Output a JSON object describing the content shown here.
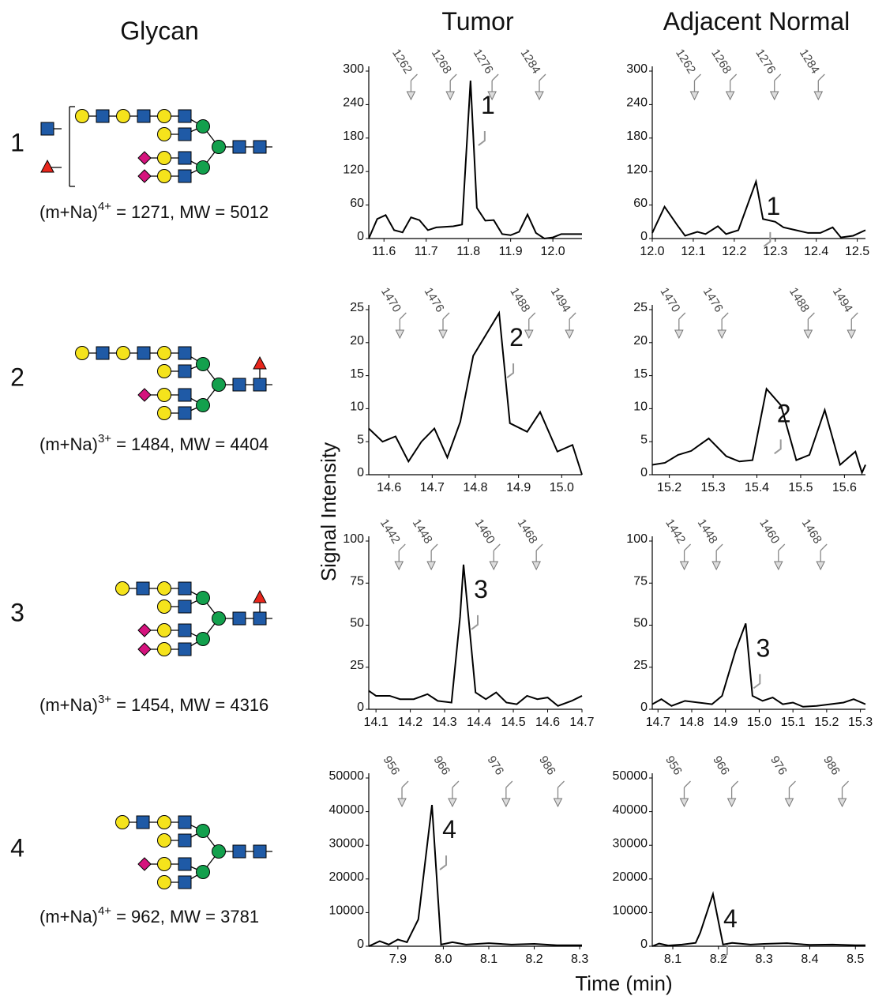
{
  "headers": {
    "glycan": "Glycan",
    "tumor": "Tumor",
    "normal": "Adjacent Normal"
  },
  "y_label": "Signal Intensity",
  "x_label": "Time (min)",
  "glycans": [
    {
      "number": "1",
      "formula": "(m+Na)",
      "charge": "4+",
      "details": "= 1271, MW = 5012"
    },
    {
      "number": "2",
      "formula": "(m+Na)",
      "charge": "3+",
      "details": "= 1484, MW = 4404"
    },
    {
      "number": "3",
      "formula": "(m+Na)",
      "charge": "3+",
      "details": "= 1454, MW = 4316"
    },
    {
      "number": "4",
      "formula": "(m+Na)",
      "charge": "4+",
      "details": "= 962, MW = 3781"
    }
  ],
  "chart_data": [
    {
      "type": "line",
      "color": "#000000",
      "annotation": "1",
      "x": [
        11.564,
        11.584,
        11.604,
        11.624,
        11.644,
        11.664,
        11.684,
        11.704,
        11.724,
        11.764,
        11.785,
        11.805,
        11.82,
        11.84,
        11.86,
        11.88,
        11.9,
        11.92,
        11.94,
        11.96,
        11.98,
        12.0,
        12.02,
        12.069
      ],
      "values": [
        0,
        35,
        42,
        15,
        11,
        38,
        33,
        15,
        20,
        22,
        25,
        283,
        55,
        32,
        33,
        8,
        6,
        12,
        43,
        10,
        0,
        2,
        8,
        8
      ],
      "xlim": [
        11.564,
        12.069
      ],
      "ylim": [
        0,
        300
      ],
      "xticks": [
        11.6,
        11.7,
        11.8,
        11.9,
        {
          "value": 12,
          "label": "12.0"
        }
      ],
      "yticks": [
        0,
        60,
        120,
        180,
        240,
        300
      ],
      "markers": {
        "x": [
          11.664,
          11.757,
          11.856,
          11.968
        ],
        "labels": [
          "1262",
          "1268",
          "1276",
          "1284"
        ]
      }
    },
    {
      "type": "line",
      "color": "#000000",
      "annotation": "1",
      "x": [
        12.0,
        12.03,
        12.06,
        12.08,
        12.11,
        12.13,
        12.16,
        12.18,
        12.21,
        12.253,
        12.27,
        12.3,
        12.32,
        12.35,
        12.38,
        12.41,
        12.44,
        12.46,
        12.49,
        12.52
      ],
      "values": [
        10,
        57,
        25,
        5,
        12,
        8,
        22,
        8,
        15,
        102,
        35,
        30,
        20,
        15,
        10,
        10,
        20,
        2,
        5,
        15
      ],
      "xlim": [
        12.0,
        12.52
      ],
      "ylim": [
        0,
        300
      ],
      "xticks": [
        {
          "value": 12,
          "label": "12.0"
        },
        12.1,
        12.2,
        12.3,
        12.4,
        12.5
      ],
      "yticks": [
        0,
        60,
        120,
        180,
        240,
        300
      ],
      "markers": {
        "x": [
          12.103,
          12.19,
          12.298,
          12.405
        ],
        "labels": [
          "1262",
          "1268",
          "1276",
          "1284"
        ]
      }
    },
    {
      "type": "line",
      "color": "#000000",
      "annotation": "2",
      "x": [
        14.553,
        14.585,
        14.615,
        14.645,
        14.675,
        14.705,
        14.735,
        14.765,
        14.795,
        14.855,
        14.88,
        14.92,
        14.95,
        14.99,
        15.025,
        15.047
      ],
      "values": [
        7,
        5,
        5.8,
        2,
        5,
        7,
        2.6,
        8,
        18,
        24.5,
        7.8,
        6.5,
        9.5,
        3.5,
        4.5,
        0
      ],
      "xlim": [
        14.553,
        15.047
      ],
      "ylim": [
        0,
        25
      ],
      "xticks": [
        14.6,
        14.7,
        14.8,
        14.9,
        {
          "value": 15,
          "label": "15.0"
        }
      ],
      "yticks": [
        0,
        5,
        10,
        15,
        20,
        25
      ],
      "markers": {
        "x": [
          14.625,
          14.725,
          14.924,
          15.018
        ],
        "labels": [
          "1470",
          "1476",
          "1488",
          "1494"
        ]
      }
    },
    {
      "type": "line",
      "color": "#000000",
      "annotation": "2",
      "x": [
        15.161,
        15.19,
        15.22,
        15.25,
        15.29,
        15.33,
        15.36,
        15.39,
        15.422,
        15.455,
        15.49,
        15.52,
        15.555,
        15.59,
        15.625,
        15.64,
        15.648
      ],
      "values": [
        1.5,
        1.8,
        3,
        3.6,
        5.5,
        2.8,
        2,
        2.2,
        13,
        10.5,
        2.2,
        3,
        9.8,
        1.5,
        3.5,
        0.3,
        1.5
      ],
      "xlim": [
        15.161,
        15.648
      ],
      "ylim": [
        0,
        25
      ],
      "xticks": [
        15.2,
        15.3,
        15.4,
        15.5,
        15.6
      ],
      "yticks": [
        0,
        5,
        10,
        15,
        20,
        25
      ],
      "markers": {
        "x": [
          15.222,
          15.32,
          15.517,
          15.616
        ],
        "labels": [
          "1470",
          "1476",
          "1488",
          "1494"
        ]
      }
    },
    {
      "type": "line",
      "color": "#000000",
      "annotation": "3",
      "x": [
        14.079,
        14.1,
        14.14,
        14.17,
        14.21,
        14.25,
        14.28,
        14.32,
        14.345,
        14.355,
        14.39,
        14.42,
        14.45,
        14.48,
        14.51,
        14.54,
        14.57,
        14.6,
        14.63,
        14.67,
        14.7
      ],
      "values": [
        11,
        8,
        8,
        6,
        6,
        9,
        5,
        4,
        55,
        86,
        10,
        6,
        10,
        4,
        3,
        8,
        6,
        7,
        2,
        5,
        8
      ],
      "xlim": [
        14.079,
        14.7
      ],
      "ylim": [
        0,
        100
      ],
      "xticks": [
        14.1,
        14.2,
        14.3,
        14.4,
        14.5,
        14.6,
        14.7
      ],
      "yticks": [
        0,
        25,
        50,
        75,
        100
      ],
      "markers": {
        "x": [
          14.167,
          14.261,
          14.443,
          14.567
        ],
        "labels": [
          "1442",
          "1448",
          "1460",
          "1468"
        ]
      }
    },
    {
      "type": "line",
      "color": "#000000",
      "annotation": "3",
      "x": [
        14.683,
        14.71,
        14.74,
        14.78,
        14.82,
        14.86,
        14.89,
        14.93,
        14.96,
        14.98,
        15.01,
        15.04,
        15.07,
        15.1,
        15.13,
        15.17,
        15.21,
        15.25,
        15.28,
        15.315
      ],
      "values": [
        3,
        6,
        2,
        5,
        4,
        3,
        8,
        35,
        51,
        8,
        5,
        7,
        3,
        4,
        1.5,
        2,
        3,
        4,
        6,
        3
      ],
      "xlim": [
        14.683,
        15.315
      ],
      "ylim": [
        0,
        100
      ],
      "xticks": [
        14.7,
        14.8,
        14.9,
        {
          "value": 15,
          "label": "15.0"
        },
        15.1,
        15.2,
        15.3
      ],
      "yticks": [
        0,
        25,
        50,
        75,
        100
      ],
      "markers": {
        "x": [
          14.778,
          14.873,
          15.057,
          15.182
        ],
        "labels": [
          "1442",
          "1448",
          "1460",
          "1468"
        ]
      }
    },
    {
      "type": "line",
      "color": "#000000",
      "annotation": "4",
      "x": [
        7.836,
        7.86,
        7.88,
        7.9,
        7.92,
        7.945,
        7.975,
        7.995,
        8.02,
        8.05,
        8.1,
        8.15,
        8.2,
        8.25,
        8.305
      ],
      "values": [
        0,
        1500,
        500,
        2000,
        1200,
        8000,
        42000,
        500,
        1200,
        500,
        900,
        500,
        700,
        300,
        300
      ],
      "xlim": [
        7.836,
        8.305
      ],
      "ylim": [
        0,
        50000
      ],
      "xticks": [
        7.9,
        {
          "value": 8,
          "label": "8.0"
        },
        8.1,
        8.2,
        8.3
      ],
      "yticks": [
        0,
        10000,
        20000,
        30000,
        40000,
        50000
      ],
      "markers": {
        "x": [
          7.909,
          8.02,
          8.138,
          8.252
        ],
        "labels": [
          "956",
          "966",
          "976",
          "986"
        ]
      }
    },
    {
      "type": "line",
      "color": "#000000",
      "annotation": "4",
      "x": [
        8.055,
        8.07,
        8.09,
        8.12,
        8.15,
        8.16,
        8.188,
        8.21,
        8.23,
        8.27,
        8.3,
        8.35,
        8.4,
        8.45,
        8.5,
        8.522
      ],
      "values": [
        0,
        800,
        200,
        500,
        1000,
        4000,
        15500,
        500,
        1000,
        500,
        700,
        900,
        400,
        500,
        300,
        300
      ],
      "xlim": [
        8.055,
        8.522
      ],
      "ylim": [
        0,
        50000
      ],
      "xticks": [
        8.1,
        8.2,
        8.3,
        8.4,
        8.5
      ],
      "yticks": [
        0,
        10000,
        20000,
        30000,
        40000,
        50000
      ],
      "markers": {
        "x": [
          8.125,
          8.229,
          8.355,
          8.471
        ],
        "labels": [
          "956",
          "966",
          "976",
          "986"
        ]
      }
    }
  ]
}
